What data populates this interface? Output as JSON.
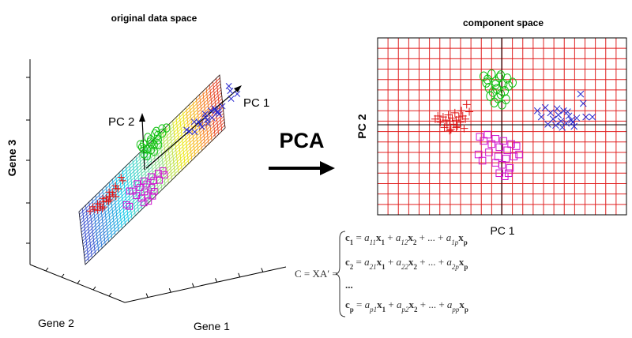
{
  "left_panel": {
    "title": "original data space",
    "axis_gene1": "Gene 1",
    "axis_gene2": "Gene 2",
    "axis_gene3": "Gene 3",
    "pc1_label": "PC 1",
    "pc2_label": "PC 2"
  },
  "arrow_label": "PCA",
  "right_panel": {
    "title": "component space",
    "xlabel": "PC 1",
    "ylabel": "PC 2"
  },
  "formula": {
    "lhs": "C = XA′ =",
    "rows": [
      {
        "c": "c",
        "sub": "1",
        "terms": [
          [
            "a",
            "11",
            "x",
            "1"
          ],
          [
            "a",
            "12",
            "x",
            "2"
          ],
          [
            "a",
            "1p",
            "x",
            "p"
          ]
        ]
      },
      {
        "c": "c",
        "sub": "2",
        "terms": [
          [
            "a",
            "21",
            "x",
            "1"
          ],
          [
            "a",
            "22",
            "x",
            "2"
          ],
          [
            "a",
            "2p",
            "x",
            "p"
          ]
        ]
      },
      {
        "c": "...",
        "sub": "",
        "terms": []
      },
      {
        "c": "c",
        "sub": "p",
        "terms": [
          [
            "a",
            "p1",
            "x",
            "1"
          ],
          [
            "a",
            "p2",
            "x",
            "2"
          ],
          [
            "a",
            "pp",
            "x",
            "p"
          ]
        ]
      }
    ]
  },
  "colors": {
    "red_cluster": "#e01010",
    "green_cluster": "#10c010",
    "blue_cluster": "#2a2ad0",
    "magenta_cluster": "#d010d0",
    "grid_red": "#e02020"
  },
  "chart_data": {
    "type": "scatter",
    "title": "component space",
    "xlabel": "PC 1",
    "ylabel": "PC 2",
    "series": [
      {
        "marker": "plus",
        "color": "#e01010",
        "points": [
          [
            -4.6,
            0.2
          ],
          [
            -4.4,
            0.5
          ],
          [
            -4.2,
            -0.1
          ],
          [
            -4.0,
            0.4
          ],
          [
            -3.9,
            -0.6
          ],
          [
            -3.8,
            0.1
          ],
          [
            -3.7,
            -0.4
          ],
          [
            -3.6,
            0.6
          ],
          [
            -3.5,
            0.0
          ],
          [
            -3.4,
            -0.8
          ],
          [
            -3.3,
            0.3
          ],
          [
            -3.2,
            -0.3
          ],
          [
            -3.1,
            0.8
          ],
          [
            -3.0,
            0.1
          ],
          [
            -2.9,
            -0.5
          ],
          [
            -2.8,
            0.4
          ],
          [
            -2.7,
            -0.1
          ],
          [
            -2.6,
            1.0
          ],
          [
            -2.5,
            0.5
          ],
          [
            -2.4,
            -0.7
          ],
          [
            -2.3,
            0.2
          ],
          [
            -2.2,
            1.6
          ],
          [
            -2.0,
            0.9
          ],
          [
            -3.5,
            -0.9
          ],
          [
            -3.0,
            -0.6
          ]
        ]
      },
      {
        "marker": "circle",
        "color": "#10c010",
        "points": [
          [
            -0.9,
            4.3
          ],
          [
            -0.6,
            4.0
          ],
          [
            -0.3,
            4.5
          ],
          [
            0.0,
            3.8
          ],
          [
            0.3,
            4.2
          ],
          [
            0.6,
            3.6
          ],
          [
            0.9,
            4.1
          ],
          [
            -0.5,
            3.2
          ],
          [
            -0.2,
            2.8
          ],
          [
            0.1,
            3.1
          ],
          [
            0.4,
            2.6
          ],
          [
            0.7,
            2.9
          ],
          [
            1.0,
            3.4
          ],
          [
            -0.7,
            3.7
          ],
          [
            0.2,
            2.2
          ],
          [
            -0.1,
            1.8
          ],
          [
            0.5,
            1.6
          ],
          [
            0.8,
            2.1
          ],
          [
            -0.4,
            2.4
          ],
          [
            1.3,
            3.7
          ],
          [
            0.0,
            3.5
          ],
          [
            0.4,
            4.4
          ]
        ]
      },
      {
        "marker": "x",
        "color": "#2a2ad0",
        "points": [
          [
            3.2,
            1.0
          ],
          [
            3.5,
            0.4
          ],
          [
            3.8,
            1.3
          ],
          [
            4.0,
            -0.3
          ],
          [
            4.2,
            0.8
          ],
          [
            4.4,
            0.2
          ],
          [
            4.6,
            -0.4
          ],
          [
            4.8,
            0.6
          ],
          [
            5.0,
            0.0
          ],
          [
            5.2,
            1.0
          ],
          [
            5.4,
            -0.2
          ],
          [
            5.6,
            0.5
          ],
          [
            5.8,
            0.1
          ],
          [
            6.0,
            -0.5
          ],
          [
            6.2,
            0.3
          ],
          [
            6.5,
            2.6
          ],
          [
            6.7,
            1.7
          ],
          [
            6.9,
            0.4
          ],
          [
            7.4,
            0.4
          ],
          [
            4.7,
            1.2
          ],
          [
            5.1,
            -0.6
          ],
          [
            5.5,
            0.9
          ],
          [
            5.9,
            -0.1
          ]
        ]
      },
      {
        "marker": "square",
        "color": "#d010d0",
        "points": [
          [
            -1.2,
            -1.5
          ],
          [
            -0.9,
            -1.9
          ],
          [
            -0.6,
            -1.3
          ],
          [
            -0.3,
            -2.2
          ],
          [
            0.0,
            -1.7
          ],
          [
            0.3,
            -2.5
          ],
          [
            0.6,
            -1.9
          ],
          [
            0.9,
            -2.8
          ],
          [
            1.2,
            -2.2
          ],
          [
            -1.3,
            -3.2
          ],
          [
            -1.0,
            -3.8
          ],
          [
            0.2,
            -3.4
          ],
          [
            0.5,
            -4.2
          ],
          [
            0.8,
            -3.6
          ],
          [
            1.1,
            -4.5
          ],
          [
            1.4,
            -3.4
          ],
          [
            1.6,
            -2.4
          ],
          [
            1.8,
            -3.2
          ],
          [
            0.3,
            -5.0
          ],
          [
            0.7,
            -5.3
          ],
          [
            1.0,
            -5.0
          ],
          [
            -0.5,
            -3.0
          ],
          [
            0.0,
            -4.0
          ]
        ]
      }
    ],
    "xlim": [
      -9,
      10
    ],
    "ylim": [
      -9,
      8
    ],
    "grid": true
  }
}
